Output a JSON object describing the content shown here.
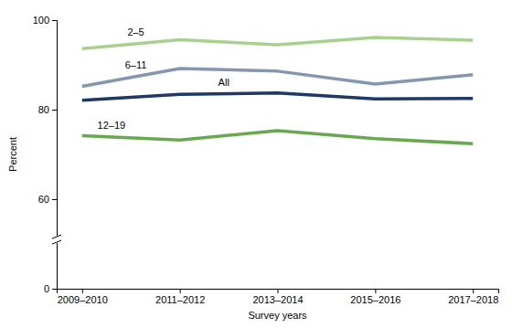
{
  "chart_data": {
    "type": "line",
    "x_label": "Survey years",
    "y_label": "Percent",
    "categories": [
      "2009–2010",
      "2011–2012",
      "2013–2014",
      "2015–2016",
      "2017–2018"
    ],
    "series": [
      {
        "name": "2–5",
        "color": "#a9d18e",
        "values": [
          93.6,
          95.6,
          94.5,
          96.1,
          95.5
        ]
      },
      {
        "name": "6–11",
        "color": "#8497b0",
        "values": [
          85.2,
          89.2,
          88.6,
          85.7,
          87.8
        ]
      },
      {
        "name": "All",
        "color": "#1f3864",
        "values": [
          82.1,
          83.4,
          83.7,
          82.4,
          82.5
        ]
      },
      {
        "name": "12–19",
        "color": "#6aa84f",
        "values": [
          74.2,
          73.2,
          75.3,
          73.5,
          72.4
        ]
      }
    ],
    "ylim": [
      0,
      100
    ],
    "yticks": [
      0,
      60,
      80,
      100
    ],
    "grid": false
  }
}
